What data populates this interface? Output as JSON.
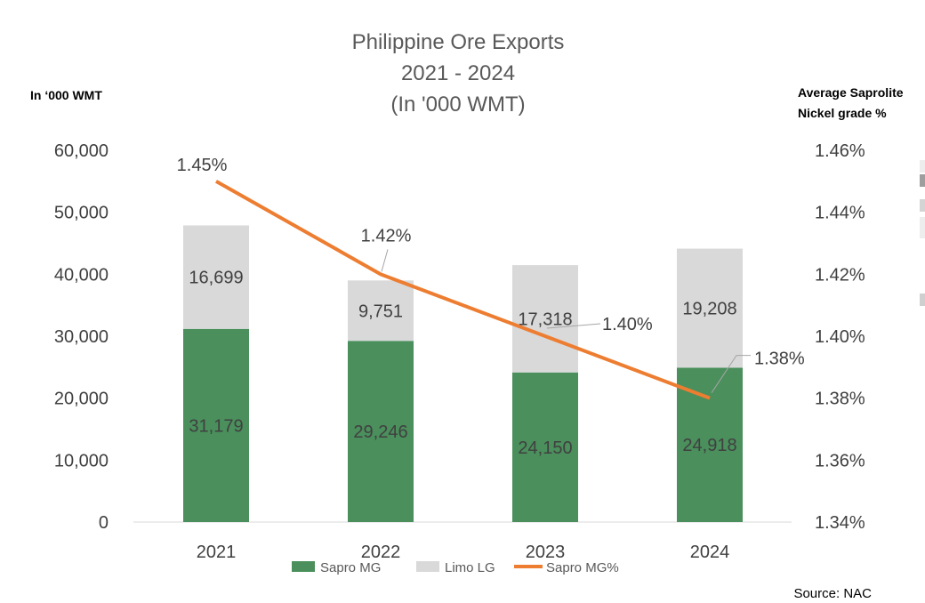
{
  "chart_data": {
    "type": "bar",
    "stacked": true,
    "title_lines": [
      "Philippine Ore Exports",
      "2021 - 2024",
      "(In '000 WMT)"
    ],
    "ylabel": "In ‘000 WMT",
    "y2label_lines": [
      "Average Saprolite",
      "Nickel grade %"
    ],
    "categories": [
      "2021",
      "2022",
      "2023",
      "2024"
    ],
    "ylim": [
      0,
      60000
    ],
    "yticks": [
      0,
      10000,
      20000,
      30000,
      40000,
      50000,
      60000
    ],
    "ytick_labels": [
      "0",
      "10,000",
      "20,000",
      "30,000",
      "40,000",
      "50,000",
      "60,000"
    ],
    "y2lim": [
      1.34,
      1.46
    ],
    "y2ticks": [
      1.34,
      1.36,
      1.38,
      1.4,
      1.42,
      1.44,
      1.46
    ],
    "y2tick_labels": [
      "1.34%",
      "1.36%",
      "1.38%",
      "1.40%",
      "1.42%",
      "1.44%",
      "1.46%"
    ],
    "series": [
      {
        "name": "Sapro MG",
        "type": "bar",
        "axis": "left",
        "color": "#4a8f5c",
        "values": [
          31179,
          29246,
          24150,
          24918
        ],
        "labels": [
          "31,179",
          "29,246",
          "24,150",
          "24,918"
        ]
      },
      {
        "name": "Limo LG",
        "type": "bar",
        "axis": "left",
        "color": "#d9d9d9",
        "values": [
          16699,
          9751,
          17318,
          19208
        ],
        "labels": [
          "16,699",
          "9,751",
          "17,318",
          "19,208"
        ]
      },
      {
        "name": "Sapro MG%",
        "type": "line",
        "axis": "right",
        "color": "#ed7d31",
        "values": [
          1.45,
          1.42,
          1.4,
          1.38
        ],
        "labels": [
          "1.45%",
          "1.42%",
          "1.40%",
          "1.38%"
        ]
      }
    ],
    "grid": false,
    "legend_position": "bottom",
    "source": "Source: NAC"
  }
}
